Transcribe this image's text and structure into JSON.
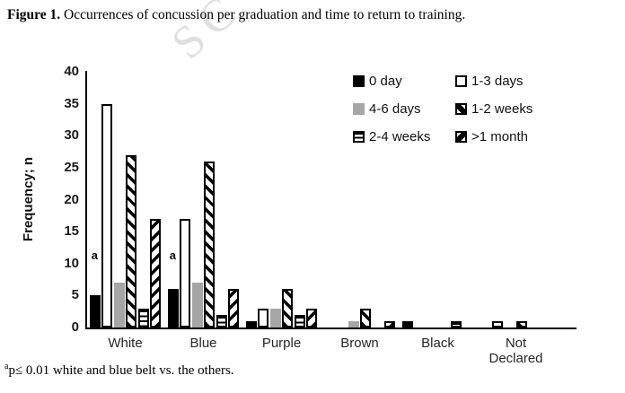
{
  "page": {
    "title_prefix": "Figure 1.",
    "title_rest": " Occurrences of concussion per graduation and time to return to training.",
    "watermark": "SC",
    "footnote_sup": "a",
    "footnote_text": "p≤ 0.01 white and blue belt vs. the others."
  },
  "chart_data": {
    "type": "bar",
    "title": "Figure 1. Occurrences of concussion per graduation and time to return to training.",
    "xlabel": "",
    "ylabel": "Frequency; n",
    "ylim": [
      0,
      40
    ],
    "ytick_step": 5,
    "grid": false,
    "legend_position": "top-right",
    "categories": [
      "White",
      "Blue",
      "Purple",
      "Brown",
      "Black",
      "Not Declared"
    ],
    "series": [
      {
        "name": "0 day",
        "pattern": "solid-black",
        "values": [
          5,
          6,
          1,
          0,
          1,
          0
        ]
      },
      {
        "name": "1-3 days",
        "pattern": "white",
        "values": [
          35,
          17,
          3,
          0,
          0,
          1
        ]
      },
      {
        "name": "4-6 days",
        "pattern": "gray",
        "values": [
          7,
          7,
          3,
          1,
          0,
          0
        ]
      },
      {
        "name": "1-2 weeks",
        "pattern": "diag-down",
        "values": [
          27,
          26,
          6,
          3,
          0,
          1
        ]
      },
      {
        "name": "2-4 weeks",
        "pattern": "horiz",
        "values": [
          3,
          2,
          2,
          0,
          1,
          0
        ]
      },
      {
        "name": ">1 month",
        "pattern": "diag-up",
        "values": [
          17,
          6,
          3,
          1,
          0,
          0
        ]
      }
    ],
    "bar_colors": {
      "black": "#000000",
      "white": "#ffffff",
      "gray": "#a6a6a6"
    },
    "annotations": [
      {
        "text": "a",
        "category": "White",
        "series": "0 day",
        "y": 10.5
      },
      {
        "text": "a",
        "category": "Blue",
        "series": "0 day",
        "y": 10.5
      }
    ]
  }
}
